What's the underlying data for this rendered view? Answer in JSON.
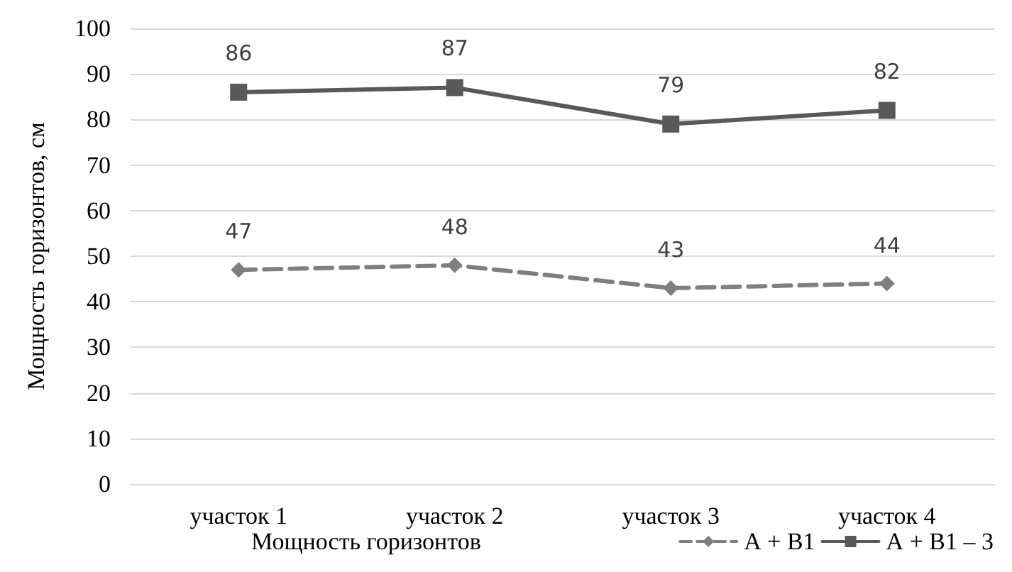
{
  "chart_data": {
    "type": "line",
    "ylabel": "Мощность горизонтов, см",
    "legend_title": "Мощность горизонтов",
    "categories": [
      "участок 1",
      "участок 2",
      "участок 3",
      "участок 4"
    ],
    "series": [
      {
        "name": "А + В1",
        "color": "#7f7f7f",
        "values": [
          47,
          48,
          43,
          44
        ],
        "marker": "diamond",
        "line_style": "dashed"
      },
      {
        "name": "А + В1 – 3",
        "color": "#595959",
        "values": [
          86,
          87,
          79,
          82
        ],
        "marker": "square",
        "line_style": "solid"
      }
    ],
    "ylim": [
      0,
      100
    ],
    "yticks": [
      0,
      10,
      20,
      30,
      40,
      50,
      60,
      70,
      80,
      90,
      100
    ],
    "grid": "y",
    "legend": "bottom",
    "data_labels": true
  }
}
